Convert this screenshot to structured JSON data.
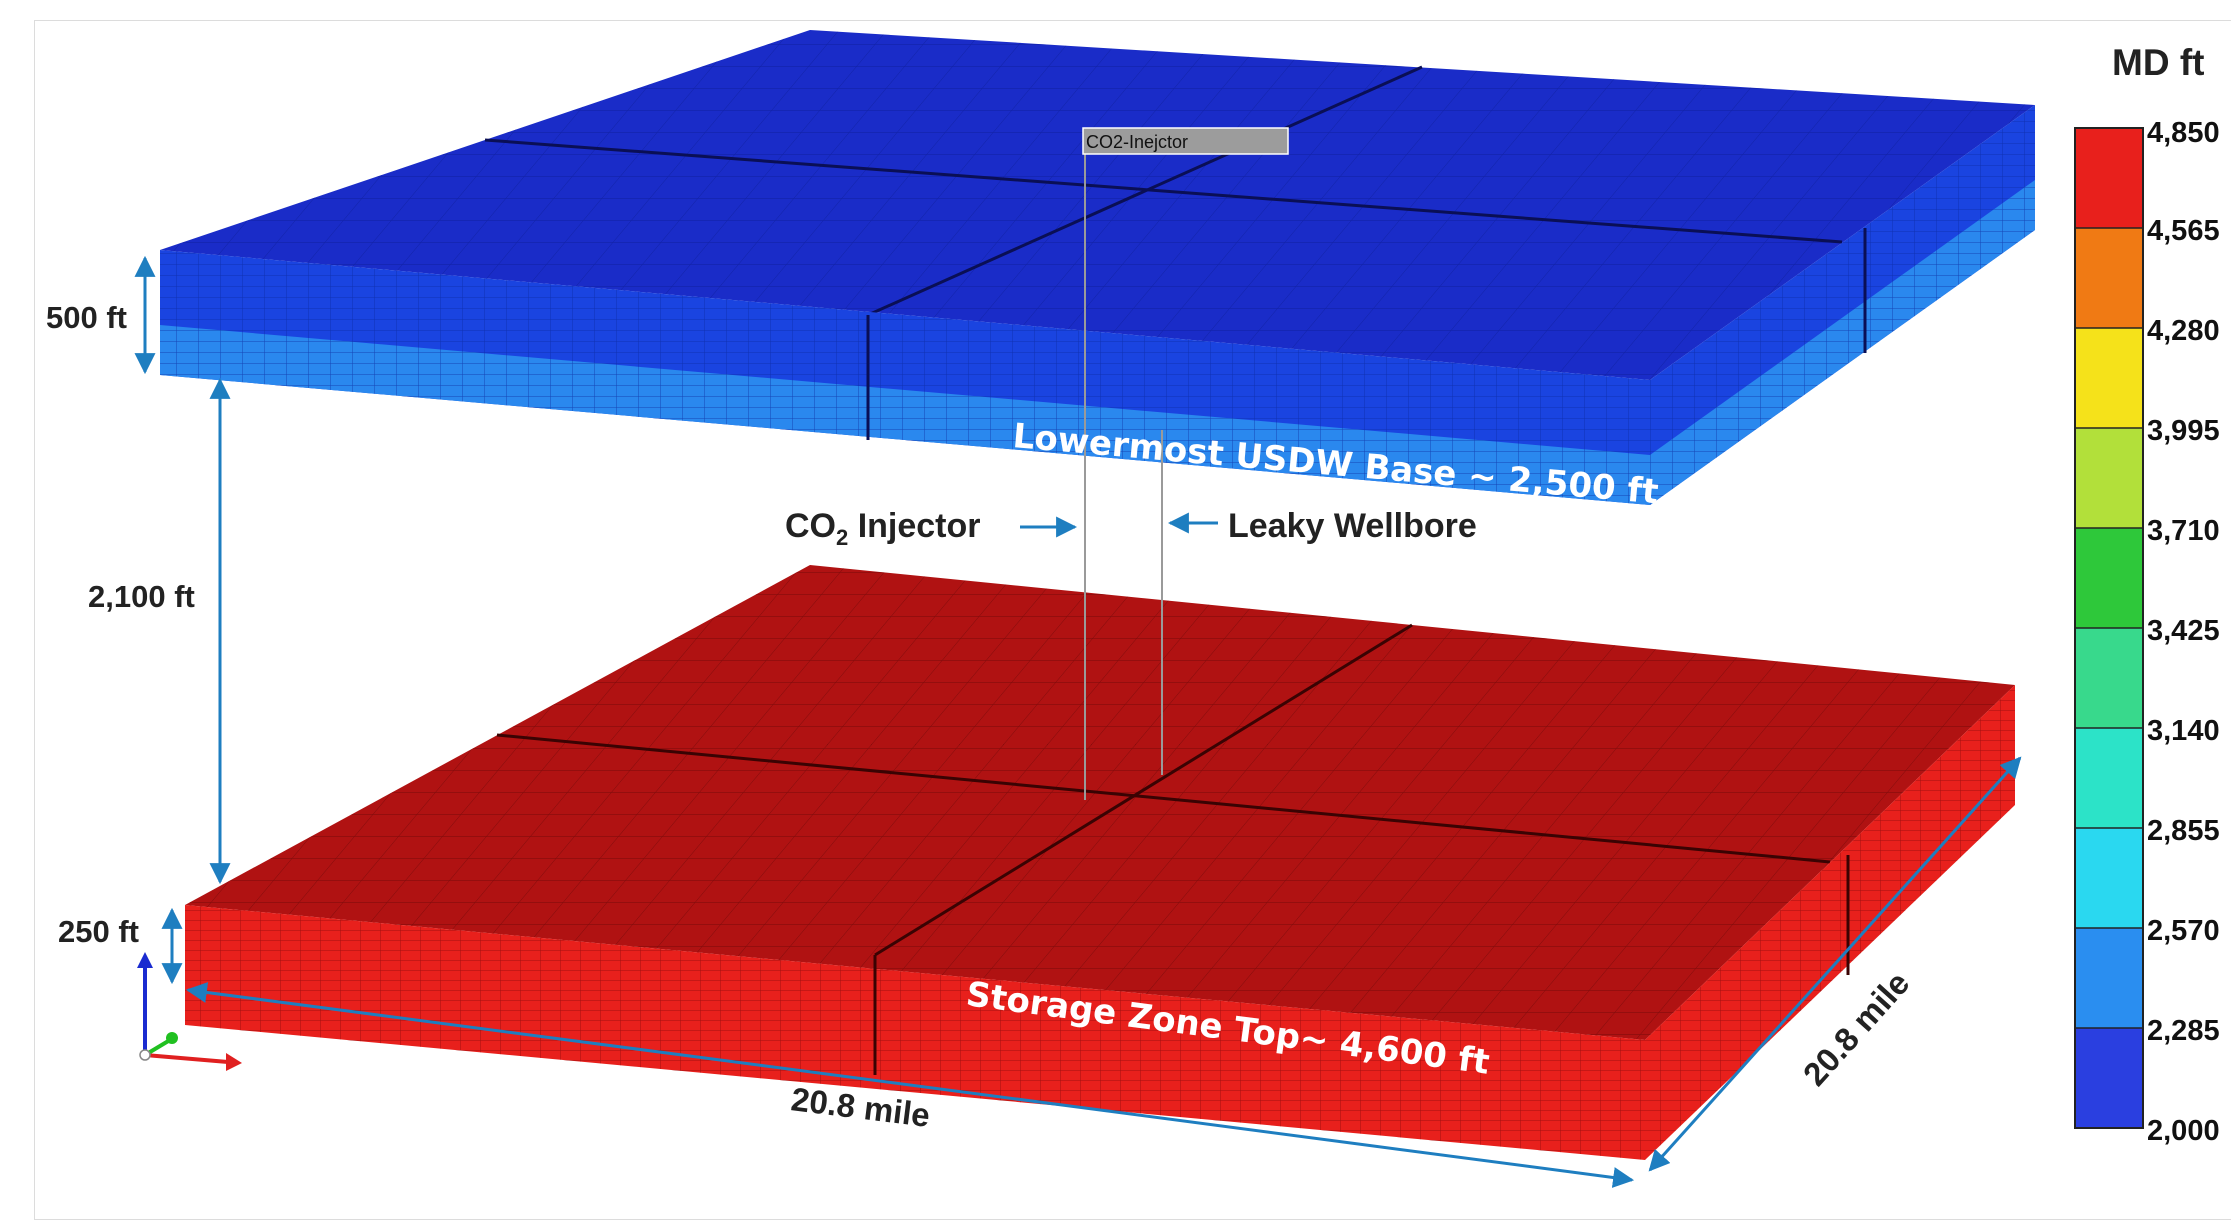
{
  "well_tag": "CO2-Inejctor",
  "labels": {
    "upper_thickness": "500 ft",
    "gap": "2,100 ft",
    "lower_thickness": "250 ft",
    "upper_zone": "Lowermost USDW Base ~ 2,500 ft",
    "lower_zone": "Storage Zone Top~ 4,600 ft",
    "width_front": "20.8 mile",
    "width_side": "20.8 mile"
  },
  "injector_label": {
    "prefix": "CO",
    "subscript": "2",
    "suffix": " Injector"
  },
  "leaky_label": "Leaky Wellbore",
  "colorbar": {
    "title": "MD ft",
    "ticks": [
      "4,850",
      "4,565",
      "4,280",
      "3,995",
      "3,710",
      "3,425",
      "3,140",
      "2,855",
      "2,570",
      "2,285",
      "2,000"
    ],
    "colors": [
      "#e8201c",
      "#f07a14",
      "#f5e21a",
      "#b2e03a",
      "#2ec83a",
      "#38d98c",
      "#2ce3c8",
      "#2ad8f0",
      "#2a8ef0",
      "#2a3fe0"
    ]
  },
  "colors": {
    "upper_top": "#1a2cc8",
    "upper_side": "#1a44e0",
    "upper_side_band": "#2a88ee",
    "lower_top": "#b01212",
    "lower_side": "#e8201c",
    "arrow": "#1e7ec0"
  },
  "axes_icon": {
    "x": "red-arrow",
    "y": "green-dot",
    "z": "blue-arrow"
  }
}
